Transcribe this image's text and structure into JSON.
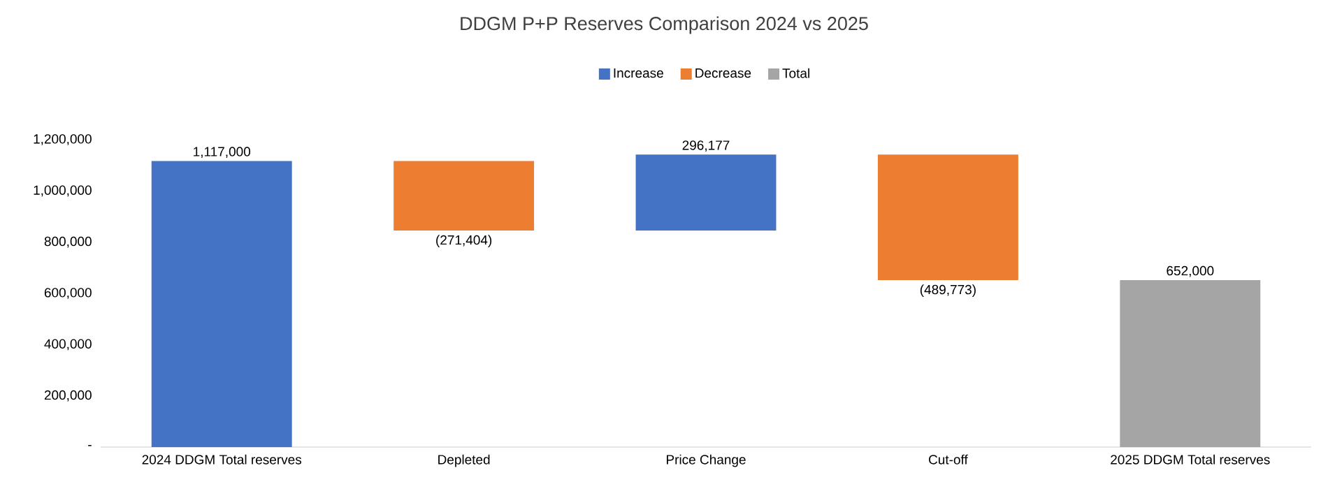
{
  "chart_data": {
    "type": "bar",
    "title": "DDGM P+P Reserves Comparison 2024 vs 2025",
    "categories": [
      "2024 DDGM Total reserves",
      "Depleted",
      "Price Change",
      "Cut-off",
      "2025 DDGM Total reserves"
    ],
    "series": [
      {
        "name": "Increase",
        "color": "#4472c4",
        "values": [
          1117000,
          null,
          296177,
          null,
          null
        ],
        "base": [
          0,
          null,
          845596,
          null,
          null
        ],
        "value_labels": [
          "1,117,000",
          null,
          "296,177",
          null,
          null
        ]
      },
      {
        "name": "Decrease",
        "color": "#ed7d31",
        "values": [
          null,
          -271404,
          null,
          -489773,
          null
        ],
        "base": [
          null,
          1117000,
          null,
          1141773,
          null
        ],
        "value_labels": [
          null,
          "(271,404)",
          null,
          "(489,773)",
          null
        ]
      },
      {
        "name": "Total",
        "color": "#a5a5a5",
        "values": [
          null,
          null,
          null,
          null,
          652000
        ],
        "base": [
          null,
          null,
          null,
          null,
          0
        ],
        "value_labels": [
          null,
          null,
          null,
          null,
          "652,000"
        ]
      }
    ],
    "ylim": [
      0,
      1200000
    ],
    "yticks": [
      {
        "value": 0,
        "label": "-"
      },
      {
        "value": 200000,
        "label": "200,000"
      },
      {
        "value": 400000,
        "label": "400,000"
      },
      {
        "value": 600000,
        "label": "600,000"
      },
      {
        "value": 800000,
        "label": "800,000"
      },
      {
        "value": 1000000,
        "label": "1,000,000"
      },
      {
        "value": 1200000,
        "label": "1,200,000"
      }
    ],
    "legend": "top"
  }
}
